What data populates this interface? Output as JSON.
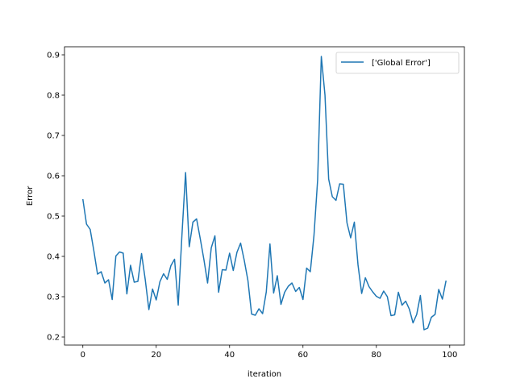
{
  "chart_data": {
    "type": "line",
    "xlabel": "iteration",
    "ylabel": "Error",
    "xlim": [
      -5,
      104
    ],
    "ylim": [
      0.18,
      0.92
    ],
    "xticks": [
      0,
      20,
      40,
      60,
      80,
      100
    ],
    "yticks": [
      0.2,
      0.3,
      0.4,
      0.5,
      0.6,
      0.7,
      0.8,
      0.9
    ],
    "ytick_labels": [
      "0.2",
      "0.3",
      "0.4",
      "0.5",
      "0.6",
      "0.7",
      "0.8",
      "0.9"
    ],
    "grid": false,
    "legend_position": "top-right",
    "series": [
      {
        "name": "['Global Error']",
        "color": "#1f77b4",
        "x": [
          0,
          1,
          2,
          3,
          4,
          5,
          6,
          7,
          8,
          9,
          10,
          11,
          12,
          13,
          14,
          15,
          16,
          17,
          18,
          19,
          20,
          21,
          22,
          23,
          24,
          25,
          26,
          27,
          28,
          29,
          30,
          31,
          32,
          33,
          34,
          35,
          36,
          37,
          38,
          39,
          40,
          41,
          42,
          43,
          44,
          45,
          46,
          47,
          48,
          49,
          50,
          51,
          52,
          53,
          54,
          55,
          56,
          57,
          58,
          59,
          60,
          61,
          62,
          63,
          64,
          65,
          66,
          67,
          68,
          69,
          70,
          71,
          72,
          73,
          74,
          75,
          76,
          77,
          78,
          79,
          80,
          81,
          82,
          83,
          84,
          85,
          86,
          87,
          88,
          89,
          90,
          91,
          92,
          93,
          94,
          95,
          96,
          97,
          98,
          99
        ],
        "values": [
          0.542,
          0.48,
          0.467,
          0.414,
          0.356,
          0.362,
          0.334,
          0.342,
          0.293,
          0.401,
          0.411,
          0.408,
          0.307,
          0.378,
          0.336,
          0.338,
          0.407,
          0.343,
          0.268,
          0.319,
          0.292,
          0.337,
          0.357,
          0.343,
          0.377,
          0.393,
          0.279,
          0.451,
          0.608,
          0.424,
          0.485,
          0.493,
          0.444,
          0.392,
          0.334,
          0.421,
          0.451,
          0.311,
          0.367,
          0.366,
          0.408,
          0.365,
          0.41,
          0.433,
          0.39,
          0.34,
          0.257,
          0.254,
          0.27,
          0.258,
          0.312,
          0.431,
          0.309,
          0.352,
          0.281,
          0.311,
          0.326,
          0.334,
          0.313,
          0.323,
          0.293,
          0.371,
          0.362,
          0.452,
          0.59,
          0.896,
          0.8,
          0.592,
          0.548,
          0.539,
          0.58,
          0.579,
          0.483,
          0.446,
          0.485,
          0.379,
          0.308,
          0.347,
          0.325,
          0.312,
          0.301,
          0.296,
          0.314,
          0.3,
          0.253,
          0.255,
          0.311,
          0.279,
          0.289,
          0.269,
          0.235,
          0.256,
          0.303,
          0.218,
          0.222,
          0.249,
          0.256,
          0.318,
          0.294,
          0.34
        ]
      }
    ]
  }
}
